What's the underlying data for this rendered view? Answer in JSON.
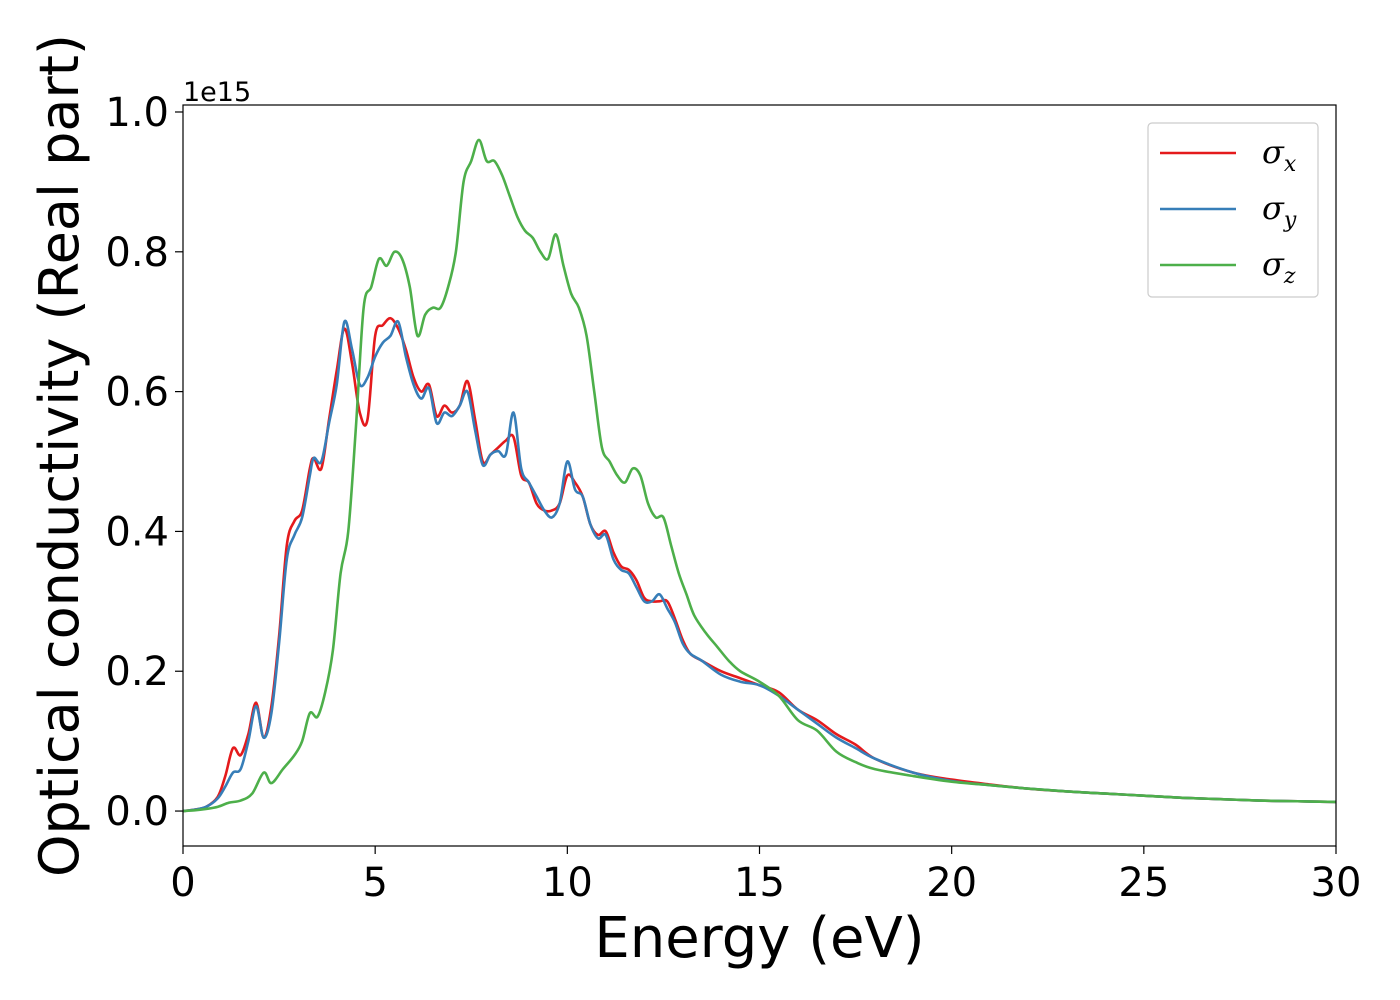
{
  "chart_data": {
    "type": "line",
    "xlabel": "Energy (eV)",
    "ylabel": "Optical conductivity (Real part)",
    "y_offset_text": "1e15",
    "xlim": [
      0,
      30
    ],
    "ylim": [
      -0.05,
      1.01
    ],
    "x_ticks": [
      0,
      5,
      10,
      15,
      20,
      25,
      30
    ],
    "x_tick_labels": [
      "0",
      "5",
      "10",
      "15",
      "20",
      "25",
      "30"
    ],
    "y_ticks": [
      0.0,
      0.2,
      0.4,
      0.6,
      0.8,
      1.0
    ],
    "y_tick_labels": [
      "0.0",
      "0.2",
      "0.4",
      "0.6",
      "0.8",
      "1.0"
    ],
    "grid": false,
    "legend_position": "top-right",
    "series": [
      {
        "name": "σx",
        "symbol": "σ",
        "subscript": "x",
        "color": "#e41a1c",
        "x": [
          0,
          0.3,
          0.6,
          0.9,
          1.1,
          1.3,
          1.5,
          1.7,
          1.9,
          2.1,
          2.3,
          2.5,
          2.7,
          2.9,
          3.1,
          3.3,
          3.4,
          3.6,
          3.8,
          4.0,
          4.2,
          4.4,
          4.6,
          4.8,
          5.0,
          5.2,
          5.4,
          5.6,
          5.8,
          6.0,
          6.2,
          6.4,
          6.6,
          6.8,
          7.0,
          7.2,
          7.4,
          7.6,
          7.8,
          8.0,
          8.2,
          8.4,
          8.6,
          8.8,
          9.0,
          9.2,
          9.4,
          9.6,
          9.8,
          10.0,
          10.2,
          10.4,
          10.6,
          10.8,
          11.0,
          11.2,
          11.4,
          11.6,
          11.8,
          12.0,
          12.2,
          12.4,
          12.6,
          12.8,
          13.0,
          13.2,
          13.5,
          14.0,
          14.5,
          15.0,
          15.5,
          16.0,
          16.5,
          17.0,
          17.5,
          18.0,
          19.0,
          20.0,
          21.0,
          22.0,
          23.0,
          24.0,
          25.0,
          26.0,
          27.0,
          28.0,
          29.0,
          30.0
        ],
        "y": [
          0.0,
          0.002,
          0.006,
          0.02,
          0.05,
          0.09,
          0.08,
          0.11,
          0.155,
          0.105,
          0.15,
          0.25,
          0.38,
          0.415,
          0.43,
          0.49,
          0.505,
          0.49,
          0.56,
          0.63,
          0.69,
          0.64,
          0.57,
          0.56,
          0.68,
          0.695,
          0.705,
          0.69,
          0.66,
          0.62,
          0.6,
          0.61,
          0.565,
          0.58,
          0.57,
          0.58,
          0.615,
          0.56,
          0.5,
          0.51,
          0.52,
          0.53,
          0.535,
          0.48,
          0.47,
          0.44,
          0.43,
          0.43,
          0.44,
          0.48,
          0.47,
          0.45,
          0.41,
          0.395,
          0.4,
          0.37,
          0.35,
          0.345,
          0.33,
          0.305,
          0.3,
          0.3,
          0.3,
          0.275,
          0.245,
          0.225,
          0.215,
          0.2,
          0.19,
          0.18,
          0.17,
          0.145,
          0.13,
          0.11,
          0.095,
          0.075,
          0.055,
          0.045,
          0.038,
          0.032,
          0.028,
          0.025,
          0.022,
          0.019,
          0.017,
          0.015,
          0.014,
          0.013
        ]
      },
      {
        "name": "σy",
        "symbol": "σ",
        "subscript": "y",
        "color": "#377eb8",
        "x": [
          0,
          0.3,
          0.6,
          0.9,
          1.1,
          1.3,
          1.5,
          1.7,
          1.9,
          2.1,
          2.3,
          2.5,
          2.7,
          2.9,
          3.1,
          3.3,
          3.4,
          3.6,
          3.8,
          4.0,
          4.2,
          4.4,
          4.6,
          4.8,
          5.0,
          5.2,
          5.4,
          5.6,
          5.8,
          6.0,
          6.2,
          6.4,
          6.6,
          6.8,
          7.0,
          7.2,
          7.4,
          7.6,
          7.8,
          8.0,
          8.2,
          8.4,
          8.6,
          8.8,
          9.0,
          9.2,
          9.4,
          9.6,
          9.8,
          10.0,
          10.2,
          10.4,
          10.6,
          10.8,
          11.0,
          11.2,
          11.4,
          11.6,
          11.8,
          12.0,
          12.2,
          12.4,
          12.6,
          12.8,
          13.0,
          13.2,
          13.5,
          14.0,
          14.5,
          15.0,
          15.5,
          16.0,
          16.5,
          17.0,
          17.5,
          18.0,
          19.0,
          20.0,
          21.0,
          22.0,
          23.0,
          24.0,
          25.0,
          26.0,
          27.0,
          28.0,
          29.0,
          30.0
        ],
        "y": [
          0.0,
          0.002,
          0.006,
          0.018,
          0.035,
          0.055,
          0.06,
          0.1,
          0.15,
          0.105,
          0.14,
          0.24,
          0.36,
          0.395,
          0.42,
          0.48,
          0.505,
          0.5,
          0.555,
          0.61,
          0.7,
          0.66,
          0.61,
          0.62,
          0.65,
          0.67,
          0.68,
          0.7,
          0.65,
          0.61,
          0.59,
          0.605,
          0.555,
          0.57,
          0.565,
          0.58,
          0.6,
          0.545,
          0.495,
          0.51,
          0.515,
          0.51,
          0.57,
          0.49,
          0.47,
          0.45,
          0.43,
          0.42,
          0.44,
          0.5,
          0.46,
          0.45,
          0.41,
          0.39,
          0.395,
          0.36,
          0.345,
          0.34,
          0.32,
          0.3,
          0.3,
          0.31,
          0.29,
          0.27,
          0.24,
          0.225,
          0.215,
          0.195,
          0.185,
          0.18,
          0.165,
          0.145,
          0.125,
          0.105,
          0.09,
          0.075,
          0.055,
          0.043,
          0.037,
          0.032,
          0.028,
          0.025,
          0.022,
          0.019,
          0.017,
          0.015,
          0.014,
          0.013
        ]
      },
      {
        "name": "σz",
        "symbol": "σ",
        "subscript": "z",
        "color": "#4daf4a",
        "x": [
          0,
          0.3,
          0.6,
          0.9,
          1.2,
          1.5,
          1.8,
          2.1,
          2.3,
          2.6,
          2.9,
          3.1,
          3.3,
          3.5,
          3.7,
          3.9,
          4.1,
          4.3,
          4.5,
          4.7,
          4.9,
          5.1,
          5.3,
          5.5,
          5.7,
          5.9,
          6.1,
          6.3,
          6.5,
          6.7,
          6.9,
          7.1,
          7.3,
          7.5,
          7.7,
          7.9,
          8.1,
          8.3,
          8.5,
          8.7,
          8.9,
          9.1,
          9.3,
          9.5,
          9.7,
          9.9,
          10.1,
          10.3,
          10.5,
          10.7,
          10.9,
          11.1,
          11.3,
          11.5,
          11.7,
          11.9,
          12.1,
          12.3,
          12.5,
          12.7,
          12.9,
          13.1,
          13.3,
          13.6,
          13.9,
          14.2,
          14.5,
          15.0,
          15.5,
          16.0,
          16.5,
          17.0,
          17.5,
          18.0,
          19.0,
          20.0,
          21.0,
          22.0,
          23.0,
          24.0,
          25.0,
          26.0,
          27.0,
          28.0,
          29.0,
          30.0
        ],
        "y": [
          0.0,
          0.001,
          0.003,
          0.006,
          0.012,
          0.015,
          0.025,
          0.055,
          0.04,
          0.06,
          0.08,
          0.1,
          0.14,
          0.135,
          0.17,
          0.23,
          0.34,
          0.4,
          0.55,
          0.72,
          0.75,
          0.79,
          0.78,
          0.8,
          0.79,
          0.75,
          0.68,
          0.71,
          0.72,
          0.72,
          0.75,
          0.8,
          0.9,
          0.93,
          0.96,
          0.93,
          0.93,
          0.91,
          0.88,
          0.85,
          0.83,
          0.82,
          0.8,
          0.79,
          0.825,
          0.78,
          0.74,
          0.72,
          0.68,
          0.6,
          0.52,
          0.5,
          0.48,
          0.47,
          0.49,
          0.48,
          0.44,
          0.42,
          0.42,
          0.38,
          0.34,
          0.31,
          0.28,
          0.255,
          0.235,
          0.215,
          0.2,
          0.185,
          0.165,
          0.13,
          0.115,
          0.085,
          0.07,
          0.06,
          0.05,
          0.042,
          0.037,
          0.032,
          0.028,
          0.025,
          0.022,
          0.019,
          0.017,
          0.015,
          0.014,
          0.013
        ]
      }
    ]
  }
}
